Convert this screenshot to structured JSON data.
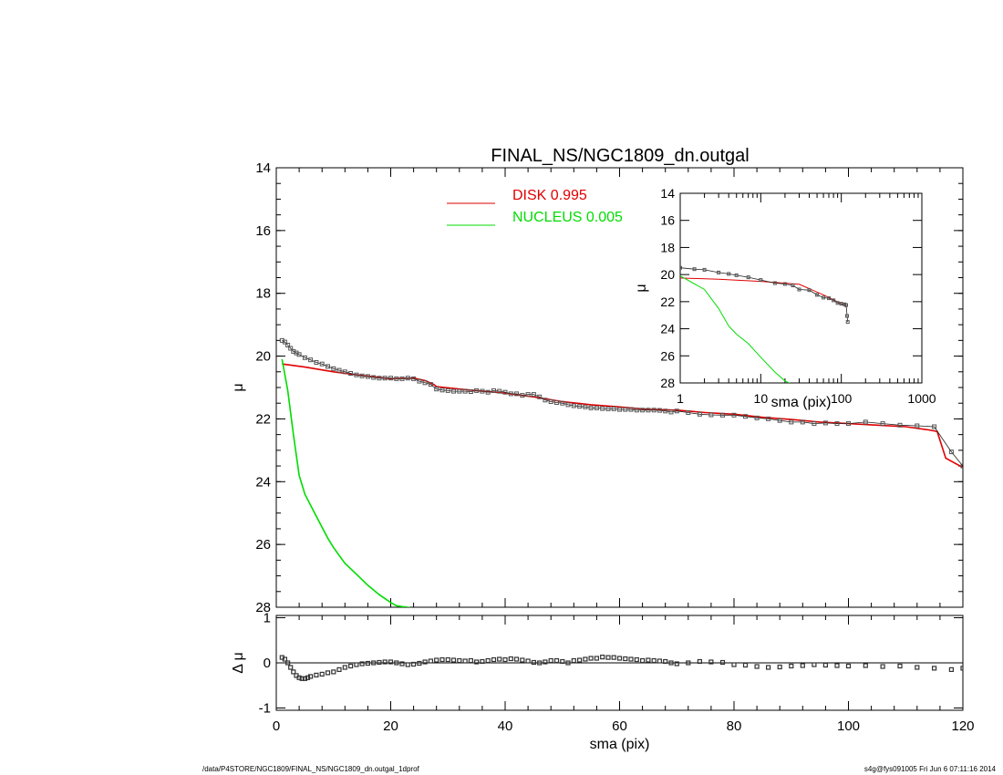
{
  "title": "FINAL_NS/NGC1809_dn.outgal",
  "footer": {
    "left": "/data/P4STORE/NGC1809/FINAL_NS/NGC1809_dn.outgal_1dprof",
    "right": "s4g@fys091005  Fri Jun  6 07:11:16 2014"
  },
  "colors": {
    "disk": "#e00000",
    "nucleus": "#00dd00",
    "data": "#555555",
    "axis": "#000000"
  },
  "chart_data": [
    {
      "type": "line",
      "panel": "main",
      "xlabel": "sma (pix)",
      "ylabel": "μ",
      "xlim": [
        0,
        120
      ],
      "ylim": [
        28,
        14
      ],
      "xticks": [
        "0",
        "20",
        "40",
        "60",
        "80",
        "100",
        "120"
      ],
      "yticks": [
        "14",
        "16",
        "18",
        "20",
        "22",
        "24",
        "26",
        "28"
      ],
      "legend": {
        "placement": "top-center",
        "entries": [
          {
            "label": "DISK  0.995",
            "color": "#e00000"
          },
          {
            "label": "NUCLEUS  0.005",
            "color": "#00dd00"
          }
        ]
      },
      "series": [
        {
          "name": "DISK  0.995",
          "style": "line",
          "color": "#e00000",
          "x": [
            1,
            5,
            10,
            15,
            20,
            24,
            26,
            27.5,
            28,
            32,
            35,
            40,
            45,
            50,
            55,
            60,
            65,
            70,
            75,
            80,
            85,
            90,
            95,
            100,
            105,
            110,
            114,
            115.5,
            117,
            120
          ],
          "y": [
            20.25,
            20.35,
            20.5,
            20.62,
            20.72,
            20.7,
            20.78,
            20.9,
            20.97,
            21.05,
            21.1,
            21.18,
            21.3,
            21.45,
            21.55,
            21.62,
            21.7,
            21.72,
            21.8,
            21.85,
            21.95,
            22.02,
            22.1,
            22.15,
            22.2,
            22.25,
            22.35,
            22.4,
            23.25,
            23.55
          ]
        },
        {
          "name": "NUCLEUS  0.005",
          "style": "line",
          "color": "#00dd00",
          "x": [
            1,
            2,
            3,
            4,
            5,
            7,
            9,
            10,
            12,
            14,
            16,
            18,
            20,
            21,
            22,
            23,
            24,
            24.5
          ],
          "y": [
            20.1,
            21.1,
            22.5,
            23.8,
            24.4,
            25.1,
            25.8,
            26.1,
            26.6,
            26.95,
            27.3,
            27.6,
            27.85,
            27.95,
            27.98,
            28.0,
            28.05,
            28.1
          ]
        },
        {
          "name": "",
          "style": "markers",
          "color": "#555555",
          "x": [
            1,
            1.5,
            2,
            2.5,
            3,
            3.5,
            4,
            5,
            6,
            7,
            8,
            9,
            10,
            11,
            12,
            13,
            14,
            15,
            16,
            17,
            18,
            19,
            20,
            21,
            22,
            23,
            24,
            25,
            26,
            27,
            28,
            29,
            30,
            31,
            32,
            33,
            34,
            35,
            36,
            37,
            38,
            39,
            40,
            41,
            42,
            43,
            44,
            45,
            46,
            47,
            48,
            49,
            50,
            51,
            52,
            53,
            54,
            55,
            56,
            57,
            58,
            59,
            60,
            61,
            62,
            63,
            64,
            65,
            66,
            67,
            68,
            69,
            70,
            72,
            74,
            76,
            78,
            80,
            82,
            84,
            86,
            88,
            90,
            92,
            94,
            96,
            98,
            100,
            103,
            106,
            109,
            112,
            115,
            118,
            120
          ],
          "y": [
            19.5,
            19.55,
            19.65,
            19.75,
            19.85,
            19.9,
            19.95,
            20.05,
            20.12,
            20.2,
            20.25,
            20.33,
            20.4,
            20.45,
            20.5,
            20.55,
            20.6,
            20.63,
            20.65,
            20.68,
            20.7,
            20.7,
            20.7,
            20.72,
            20.72,
            20.7,
            20.72,
            20.8,
            20.85,
            20.9,
            21.05,
            21.08,
            21.1,
            21.12,
            21.12,
            21.12,
            21.13,
            21.1,
            21.12,
            21.15,
            21.1,
            21.12,
            21.15,
            21.2,
            21.2,
            21.25,
            21.22,
            21.22,
            21.3,
            21.4,
            21.45,
            21.48,
            21.5,
            21.55,
            21.58,
            21.6,
            21.62,
            21.65,
            21.65,
            21.67,
            21.68,
            21.68,
            21.7,
            21.7,
            21.7,
            21.72,
            21.72,
            21.72,
            21.72,
            21.73,
            21.75,
            21.78,
            21.75,
            21.8,
            21.85,
            21.87,
            21.88,
            21.88,
            21.92,
            21.97,
            22.0,
            22.05,
            22.1,
            22.1,
            22.15,
            22.13,
            22.15,
            22.15,
            22.1,
            22.15,
            22.2,
            22.22,
            22.25,
            23.05,
            23.5
          ]
        }
      ]
    },
    {
      "type": "line",
      "panel": "inset",
      "xlabel": "sma (pix)",
      "ylabel": "μ",
      "xscale": "log",
      "xlim": [
        1,
        1000
      ],
      "ylim": [
        28,
        14
      ],
      "xticks": [
        "1",
        "10",
        "100",
        "1000"
      ],
      "yticks": [
        "14",
        "16",
        "18",
        "20",
        "22",
        "24",
        "26",
        "28"
      ],
      "series": [
        {
          "name": "DISK  0.995",
          "style": "line",
          "color": "#e00000",
          "x": [
            1,
            3,
            10,
            30,
            60,
            100,
            115
          ],
          "y": [
            20.25,
            20.35,
            20.5,
            20.72,
            21.5,
            22.15,
            22.4
          ]
        },
        {
          "name": "NUCLEUS  0.005",
          "style": "line",
          "color": "#00dd00",
          "x": [
            1,
            2,
            3,
            4,
            5,
            7,
            10,
            15,
            20,
            24.5
          ],
          "y": [
            20.1,
            21.1,
            22.5,
            23.8,
            24.4,
            25.1,
            26.1,
            27.2,
            27.85,
            28.1
          ]
        },
        {
          "name": "",
          "style": "markers",
          "color": "#555555",
          "x": [
            1,
            1.5,
            2,
            3,
            4,
            5,
            7,
            10,
            15,
            20,
            25,
            30,
            40,
            50,
            60,
            70,
            80,
            90,
            100,
            110,
            115,
            118,
            120
          ],
          "y": [
            19.5,
            19.6,
            19.65,
            19.85,
            19.95,
            20.05,
            20.2,
            20.4,
            20.63,
            20.7,
            20.8,
            21.1,
            21.15,
            21.5,
            21.7,
            21.75,
            21.9,
            22.1,
            22.15,
            22.2,
            22.25,
            23.05,
            23.5
          ]
        }
      ]
    },
    {
      "type": "line",
      "panel": "residual",
      "xlabel": "sma (pix)",
      "ylabel": "Δ μ",
      "xlim": [
        0,
        120
      ],
      "ylim": [
        -1.05,
        1.05
      ],
      "xticks": [
        "0",
        "20",
        "40",
        "60",
        "80",
        "100",
        "120"
      ],
      "yticks": [
        "1",
        "0",
        "-1"
      ],
      "series": [
        {
          "name": "",
          "style": "markers",
          "color": "#333333",
          "x": [
            1,
            1.5,
            2,
            2.5,
            3,
            3.5,
            4,
            4.5,
            5,
            5.5,
            6,
            7,
            8,
            9,
            10,
            11,
            12,
            13,
            14,
            15,
            16,
            17,
            18,
            19,
            20,
            21,
            22,
            23,
            24,
            25,
            26,
            27,
            28,
            29,
            30,
            31,
            32,
            33,
            34,
            35,
            36,
            37,
            38,
            39,
            40,
            41,
            42,
            43,
            44,
            45,
            46,
            47,
            48,
            49,
            50,
            51,
            52,
            53,
            54,
            55,
            56,
            57,
            58,
            59,
            60,
            61,
            62,
            63,
            64,
            65,
            66,
            67,
            68,
            69,
            70,
            72,
            74,
            76,
            78,
            80,
            82,
            84,
            86,
            88,
            90,
            92,
            94,
            96,
            98,
            100,
            103,
            106,
            109,
            112,
            115,
            118,
            120
          ],
          "y": [
            0.12,
            0.08,
            0.0,
            -0.1,
            -0.2,
            -0.28,
            -0.33,
            -0.35,
            -0.35,
            -0.33,
            -0.3,
            -0.27,
            -0.25,
            -0.22,
            -0.2,
            -0.15,
            -0.1,
            -0.07,
            -0.04,
            -0.02,
            -0.01,
            0.0,
            0.01,
            0.02,
            0.02,
            0.0,
            -0.02,
            -0.04,
            -0.03,
            -0.01,
            0.02,
            0.04,
            0.06,
            0.07,
            0.07,
            0.06,
            0.05,
            0.04,
            0.05,
            0.02,
            0.03,
            0.05,
            0.07,
            0.08,
            0.07,
            0.09,
            0.08,
            0.06,
            0.04,
            0.01,
            0.0,
            0.02,
            0.05,
            0.05,
            0.03,
            0.0,
            0.05,
            0.06,
            0.08,
            0.1,
            0.1,
            0.13,
            0.12,
            0.12,
            0.1,
            0.09,
            0.08,
            0.07,
            0.05,
            0.06,
            0.05,
            0.04,
            0.03,
            0.0,
            -0.02,
            0.0,
            0.03,
            0.02,
            0.01,
            -0.04,
            -0.05,
            -0.08,
            -0.1,
            -0.09,
            -0.07,
            -0.06,
            -0.04,
            -0.05,
            -0.06,
            -0.07,
            -0.06,
            -0.08,
            -0.07,
            -0.1,
            -0.12,
            -0.15,
            -0.12
          ]
        }
      ]
    }
  ]
}
